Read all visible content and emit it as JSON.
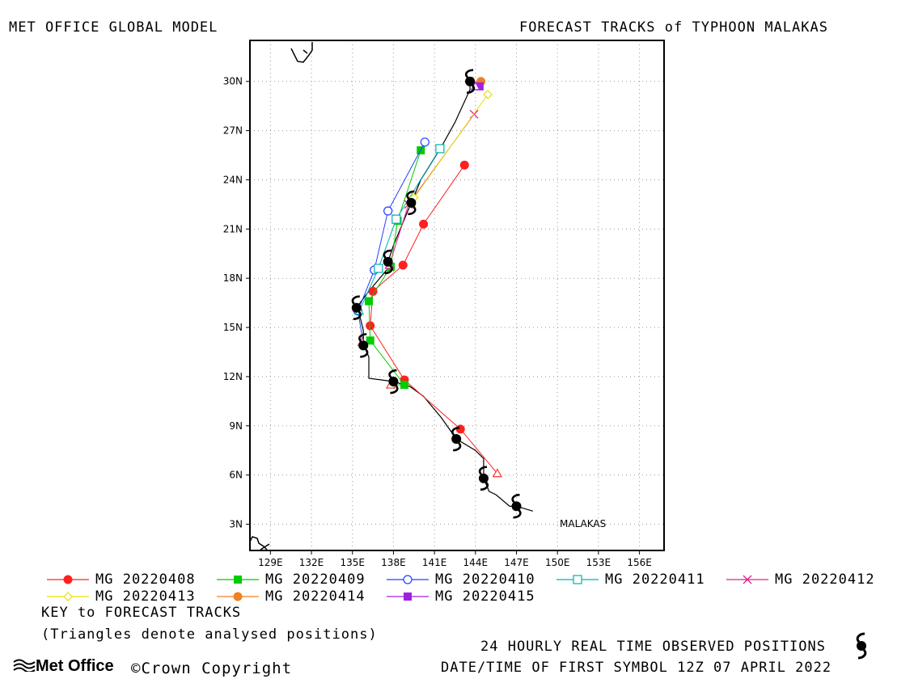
{
  "header": {
    "left_title": "MET OFFICE GLOBAL MODEL",
    "right_title": "FORECAST TRACKS of TYPHOON MALAKAS"
  },
  "map": {
    "storm_label": "MALAKAS",
    "lon_ticks": [
      "129E",
      "132E",
      "135E",
      "138E",
      "141E",
      "144E",
      "147E",
      "150E",
      "153E",
      "156E"
    ],
    "lat_ticks": [
      "3N",
      "6N",
      "9N",
      "12N",
      "15N",
      "18N",
      "21N",
      "24N",
      "27N",
      "30N"
    ],
    "lon_range": [
      127.5,
      157.8
    ],
    "lat_range": [
      1.4,
      32.5
    ],
    "observed_track": [
      [
        148.2,
        3.8
      ],
      [
        147.0,
        4.1
      ],
      [
        146.5,
        4.1
      ],
      [
        145.5,
        4.8
      ],
      [
        145.0,
        5.0
      ],
      [
        144.6,
        5.8
      ],
      [
        144.6,
        7.0
      ],
      [
        144.0,
        7.5
      ],
      [
        142.6,
        8.2
      ],
      [
        141.5,
        9.5
      ],
      [
        140.2,
        10.8
      ],
      [
        139.2,
        11.4
      ],
      [
        138.0,
        11.7
      ],
      [
        136.2,
        11.9
      ],
      [
        136.2,
        13.2
      ],
      [
        135.8,
        14.0
      ],
      [
        135.8,
        14.8
      ],
      [
        135.6,
        15.5
      ],
      [
        135.3,
        16.2
      ],
      [
        136.0,
        17.0
      ],
      [
        136.8,
        17.8
      ],
      [
        137.6,
        18.6
      ],
      [
        137.6,
        19.0
      ],
      [
        138.0,
        20.0
      ],
      [
        138.5,
        21.0
      ],
      [
        139.0,
        22.0
      ],
      [
        139.3,
        22.6
      ],
      [
        140.0,
        24.0
      ],
      [
        141.5,
        26.0
      ],
      [
        142.5,
        27.5
      ],
      [
        143.6,
        29.5
      ],
      [
        143.6,
        30.0
      ]
    ],
    "observed_positions": [
      [
        147.0,
        4.1
      ],
      [
        144.6,
        5.8
      ],
      [
        142.6,
        8.2
      ],
      [
        138.0,
        11.7
      ],
      [
        135.8,
        13.9
      ],
      [
        135.3,
        16.2
      ],
      [
        137.6,
        19.0
      ],
      [
        139.3,
        22.6
      ],
      [
        143.6,
        30.0
      ]
    ],
    "analysed_positions": [
      [
        145.6,
        6.1
      ],
      [
        137.8,
        11.5
      ],
      [
        135.7,
        14.1
      ]
    ],
    "legend": {
      "key_label": "KEY to FORECAST TRACKS",
      "note": "(Triangles denote analysed positions)"
    },
    "forecast_tracks": [
      {
        "name": "MG 20220408",
        "color": "#ff2020",
        "marker": "circle-filled",
        "analysed": [
          145.6,
          6.1
        ],
        "points": [
          [
            142.9,
            8.8
          ],
          [
            138.8,
            11.8
          ],
          [
            136.3,
            15.1
          ],
          [
            136.5,
            17.2
          ],
          [
            138.7,
            18.8
          ],
          [
            140.2,
            21.3
          ],
          [
            143.2,
            24.9
          ]
        ]
      },
      {
        "name": "MG 20220409",
        "color": "#00cc00",
        "marker": "square-filled",
        "analysed": [
          137.8,
          11.5
        ],
        "points": [
          [
            138.8,
            11.5
          ],
          [
            136.3,
            14.2
          ],
          [
            136.2,
            16.6
          ],
          [
            137.8,
            18.7
          ],
          [
            138.3,
            21.5
          ],
          [
            140.0,
            25.8
          ]
        ]
      },
      {
        "name": "MG 20220410",
        "color": "#2040ff",
        "marker": "circle-open",
        "analysed": [
          135.8,
          14.0
        ],
        "points": [
          [
            135.4,
            16.0
          ],
          [
            136.6,
            18.5
          ],
          [
            137.6,
            22.1
          ],
          [
            140.3,
            26.3
          ]
        ]
      },
      {
        "name": "MG 20220411",
        "color": "#00b0b0",
        "marker": "square-open",
        "analysed": [
          135.5,
          16.0
        ],
        "points": [
          [
            136.9,
            18.6
          ],
          [
            138.2,
            21.6
          ],
          [
            141.4,
            25.9
          ]
        ]
      },
      {
        "name": "MG 20220412",
        "color": "#e0208a",
        "marker": "x",
        "analysed": [
          137.7,
          18.8
        ],
        "points": [
          [
            139.1,
            22.5
          ],
          [
            143.9,
            28.0
          ]
        ]
      },
      {
        "name": "MG 20220413",
        "color": "#e8e000",
        "marker": "diamond-open",
        "analysed": [
          139.3,
          22.6
        ],
        "points": [
          [
            139.5,
            22.9
          ],
          [
            144.9,
            29.2
          ]
        ]
      },
      {
        "name": "MG 20220414",
        "color": "#f08020",
        "marker": "circle-filled",
        "analysed": [
          143.8,
          30.0
        ],
        "points": [
          [
            144.4,
            30.0
          ]
        ]
      },
      {
        "name": "MG 20220415",
        "color": "#a020e0",
        "marker": "square-filled",
        "analysed": [
          144.0,
          29.7
        ],
        "points": [
          [
            144.3,
            29.7
          ]
        ]
      }
    ]
  },
  "footer": {
    "observed_caption": "24 HOURLY REAL TIME OBSERVED POSITIONS",
    "datetime_caption": "DATE/TIME OF FIRST SYMBOL 12Z 07 APRIL 2022",
    "brand": "Met Office",
    "copyright_symbol": "©",
    "copyright_text": "Crown Copyright"
  }
}
